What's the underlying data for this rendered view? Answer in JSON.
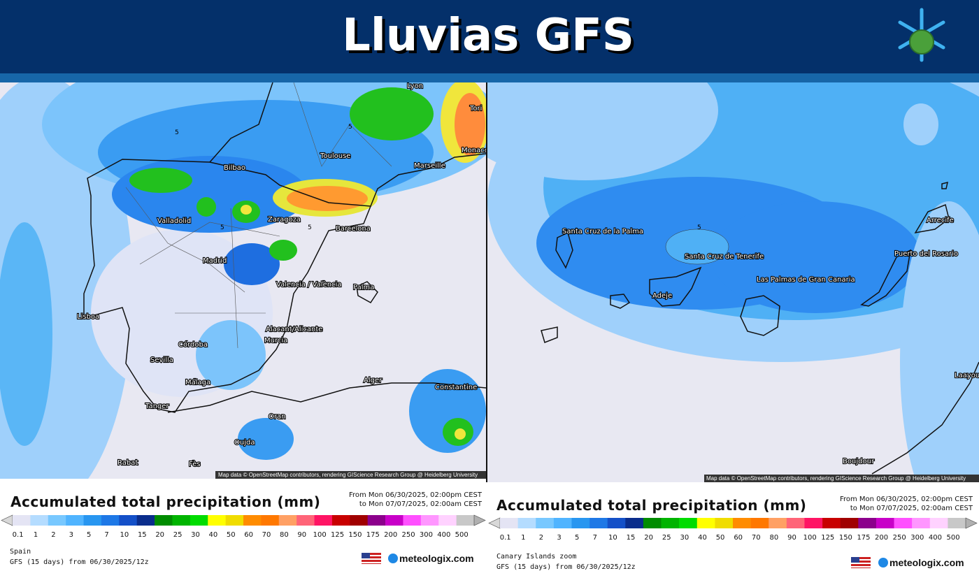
{
  "header": {
    "title": "Lluvias GFS"
  },
  "colorbar": {
    "colors": [
      "#e4e4f4",
      "#b4dcff",
      "#78c8ff",
      "#50b4ff",
      "#2896f0",
      "#1e78e6",
      "#1450c8",
      "#0a2d8c",
      "#008c00",
      "#00b400",
      "#00dc00",
      "#ffff00",
      "#f0dc00",
      "#ff8c00",
      "#ff7800",
      "#ffa064",
      "#ff6478",
      "#ff1464",
      "#c80000",
      "#a00000",
      "#8c008c",
      "#c800c8",
      "#ff50ff",
      "#ff96ff",
      "#ffd2ff",
      "#c8c8c8"
    ],
    "ticks": [
      0.1,
      1,
      2,
      3,
      5,
      7,
      10,
      15,
      20,
      25,
      30,
      40,
      50,
      60,
      70,
      80,
      90,
      100,
      125,
      150,
      175,
      200,
      250,
      300,
      400,
      500
    ]
  },
  "panels": [
    {
      "map": {
        "labels": [
          "Lyon",
          "Tori",
          "Monaco",
          "Toulouse",
          "Marseille",
          "Bilbao",
          "Valladolid",
          "Zaragoza",
          "Barcelona",
          "Madrid",
          "Palma",
          "Valencia / València",
          "Lisboa",
          "Alacant/Alicante",
          "Murcia",
          "Córdoba",
          "Sevilla",
          "Málaga",
          "Tanger",
          "Alger",
          "Constantine",
          "Oran",
          "Oujda",
          "Rabat",
          "Fès"
        ],
        "contour_labels": [
          "5",
          "5",
          "5",
          "5"
        ],
        "attribution": "Map data © OpenStreetMap contributors, rendering GIScience Research Group @ Heidelberg University"
      },
      "legend": {
        "title": "Accumulated total precipitation (mm)",
        "period": [
          "From Mon 06/30/2025, 02:00pm CEST",
          "to Mon 07/07/2025, 02:00am CEST"
        ],
        "region": "Spain",
        "model": "GFS (15 days) from 06/30/2025/12z",
        "brand": "meteologix.com"
      }
    },
    {
      "map": {
        "labels": [
          "Santa Cruz de la Palma",
          "Santa Cruz de Tenerife",
          "Las Palmas de Gran Canaria",
          "Adeje",
          "Arrecife",
          "Puerto del Rosario",
          "Boujdour",
          "Laayoune"
        ],
        "contour_labels": [
          "5"
        ],
        "attribution": "Map data © OpenStreetMap contributors, rendering GIScience Research Group @ Heidelberg University"
      },
      "legend": {
        "title": "Accumulated total precipitation (mm)",
        "period": [
          "From Mon 06/30/2025, 02:00pm CEST",
          "to Mon 07/07/2025, 02:00am CEST"
        ],
        "region": "Canary Islands zoom",
        "model": "GFS (15 days) from 06/30/2025/12z",
        "brand": "meteologix.com"
      }
    }
  ]
}
